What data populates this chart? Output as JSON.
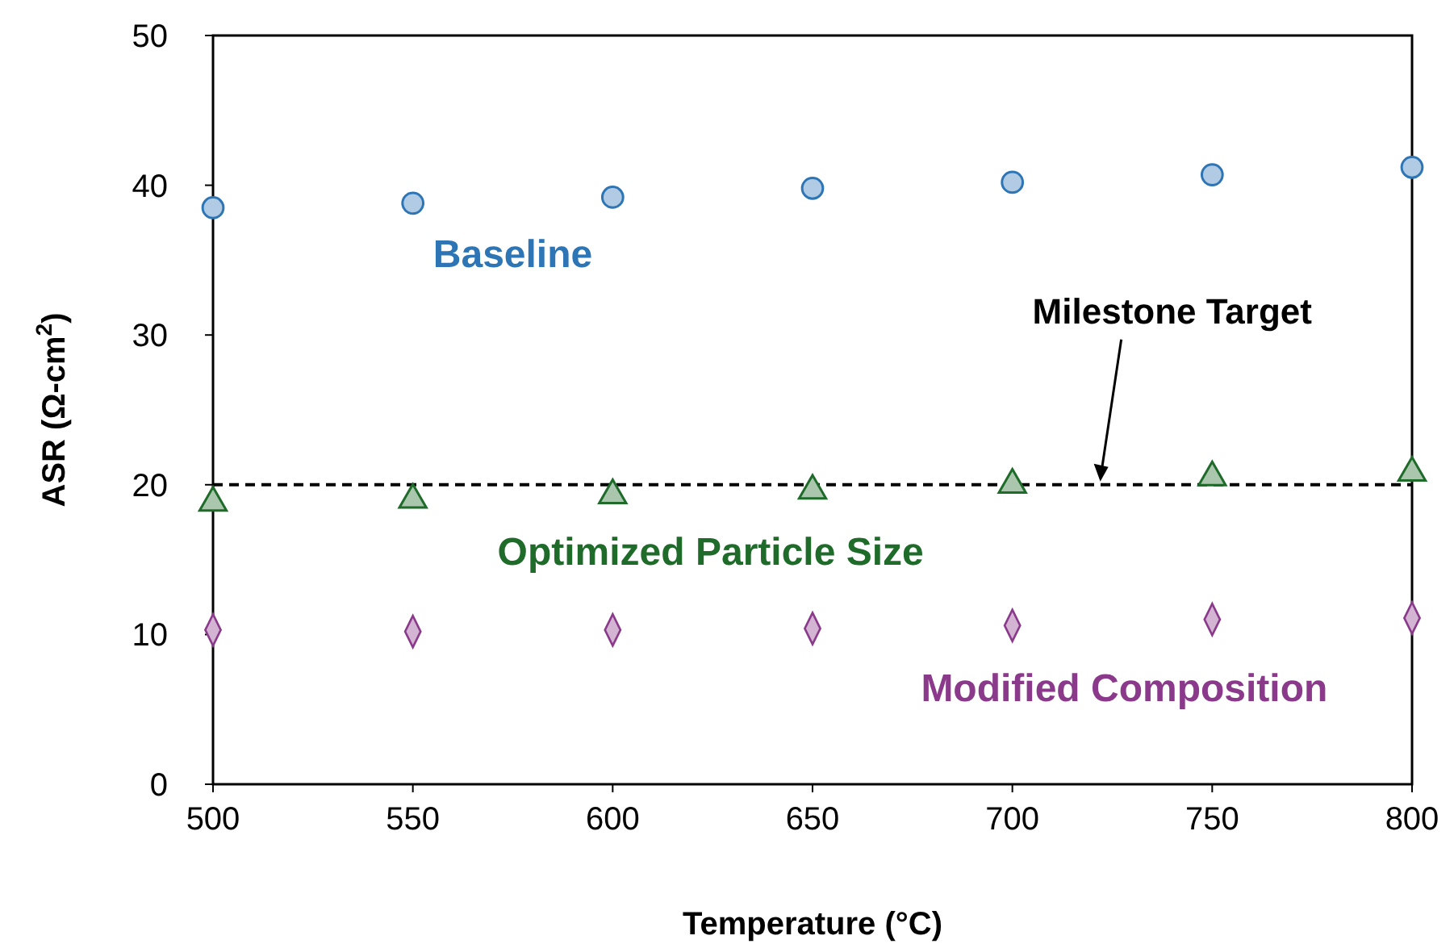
{
  "chart_data": {
    "type": "scatter",
    "xlabel": "Temperature (°C)",
    "ylabel": "ASR (Ω-cm$^{2}$)",
    "x": [
      500,
      550,
      600,
      650,
      700,
      750,
      800
    ],
    "xlim": [
      500,
      800
    ],
    "xticks": [
      500,
      550,
      600,
      650,
      700,
      750,
      800
    ],
    "ylim": [
      0,
      50
    ],
    "yticks": [
      0,
      10,
      20,
      30,
      40,
      50
    ],
    "grid": false,
    "series": [
      {
        "name": "Baseline",
        "color": "#2e75b6",
        "marker": "circle",
        "values": [
          38.5,
          38.8,
          39.2,
          39.8,
          40.2,
          40.7,
          41.2
        ]
      },
      {
        "name": "Optimized Particle Size",
        "color": "#1e6b2a",
        "marker": "triangle",
        "values": [
          18.8,
          19.0,
          19.3,
          19.6,
          20.0,
          20.5,
          20.8
        ]
      },
      {
        "name": "Modified Composition",
        "color": "#8b3a8b",
        "marker": "diamond",
        "values": [
          10.3,
          10.2,
          10.3,
          10.4,
          10.6,
          11.0,
          11.1
        ]
      }
    ],
    "ref_lines": [
      {
        "axis": "y",
        "value": 20,
        "label": "Milestone Target",
        "color": "#000000",
        "line_style": "dashed"
      }
    ]
  }
}
